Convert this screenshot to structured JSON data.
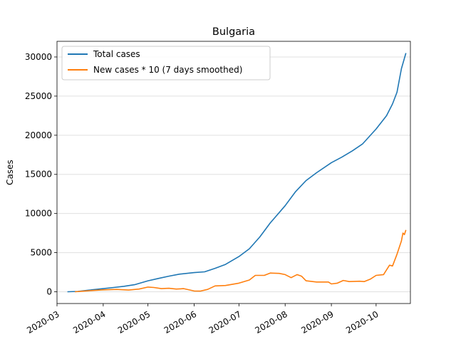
{
  "chart_data": {
    "type": "line",
    "title": "Bulgaria",
    "xlabel": "",
    "ylabel": "Cases",
    "x_axis": "date",
    "xlim": [
      "2020-03-01",
      "2020-10-24"
    ],
    "ylim": [
      -1500,
      32000
    ],
    "x_ticks": [
      "2020-03",
      "2020-04",
      "2020-05",
      "2020-06",
      "2020-07",
      "2020-08",
      "2020-09",
      "2020-10"
    ],
    "y_ticks": [
      0,
      5000,
      10000,
      15000,
      20000,
      25000,
      30000
    ],
    "y_tick_labels": [
      "0",
      "5000",
      "10000",
      "15000",
      "20000",
      "25000",
      "30000"
    ],
    "grid": "horizontal",
    "legend_position": "upper-left",
    "series": [
      {
        "name": "Total cases",
        "color": "#1f77b4",
        "points": [
          [
            "2020-03-08",
            0
          ],
          [
            "2020-03-15",
            50
          ],
          [
            "2020-03-22",
            200
          ],
          [
            "2020-04-01",
            400
          ],
          [
            "2020-04-08",
            550
          ],
          [
            "2020-04-15",
            700
          ],
          [
            "2020-04-22",
            900
          ],
          [
            "2020-05-01",
            1400
          ],
          [
            "2020-05-08",
            1700
          ],
          [
            "2020-05-15",
            2000
          ],
          [
            "2020-05-22",
            2250
          ],
          [
            "2020-06-01",
            2450
          ],
          [
            "2020-06-08",
            2550
          ],
          [
            "2020-06-15",
            3000
          ],
          [
            "2020-06-22",
            3500
          ],
          [
            "2020-07-01",
            4500
          ],
          [
            "2020-07-08",
            5500
          ],
          [
            "2020-07-15",
            7000
          ],
          [
            "2020-07-22",
            8800
          ],
          [
            "2020-08-01",
            11000
          ],
          [
            "2020-08-08",
            12800
          ],
          [
            "2020-08-15",
            14200
          ],
          [
            "2020-08-22",
            15200
          ],
          [
            "2020-09-01",
            16500
          ],
          [
            "2020-09-08",
            17200
          ],
          [
            "2020-09-15",
            18000
          ],
          [
            "2020-09-22",
            18900
          ],
          [
            "2020-10-01",
            20800
          ],
          [
            "2020-10-08",
            22500
          ],
          [
            "2020-10-12",
            24000
          ],
          [
            "2020-10-15",
            25500
          ],
          [
            "2020-10-18",
            28500
          ],
          [
            "2020-10-21",
            30500
          ]
        ]
      },
      {
        "name": "New cases * 10 (7 days smoothed)",
        "color": "#ff7f0e",
        "points": [
          [
            "2020-03-13",
            0
          ],
          [
            "2020-03-20",
            100
          ],
          [
            "2020-04-01",
            250
          ],
          [
            "2020-04-10",
            300
          ],
          [
            "2020-04-18",
            220
          ],
          [
            "2020-04-25",
            350
          ],
          [
            "2020-05-01",
            600
          ],
          [
            "2020-05-05",
            550
          ],
          [
            "2020-05-10",
            400
          ],
          [
            "2020-05-15",
            450
          ],
          [
            "2020-05-20",
            350
          ],
          [
            "2020-05-25",
            400
          ],
          [
            "2020-06-01",
            100
          ],
          [
            "2020-06-05",
            80
          ],
          [
            "2020-06-10",
            300
          ],
          [
            "2020-06-15",
            750
          ],
          [
            "2020-06-22",
            800
          ],
          [
            "2020-07-01",
            1100
          ],
          [
            "2020-07-08",
            1500
          ],
          [
            "2020-07-12",
            2100
          ],
          [
            "2020-07-18",
            2100
          ],
          [
            "2020-07-22",
            2400
          ],
          [
            "2020-07-28",
            2350
          ],
          [
            "2020-08-01",
            2200
          ],
          [
            "2020-08-05",
            1800
          ],
          [
            "2020-08-09",
            2200
          ],
          [
            "2020-08-12",
            2000
          ],
          [
            "2020-08-15",
            1400
          ],
          [
            "2020-08-22",
            1250
          ],
          [
            "2020-08-30",
            1250
          ],
          [
            "2020-09-01",
            1000
          ],
          [
            "2020-09-05",
            1100
          ],
          [
            "2020-09-09",
            1450
          ],
          [
            "2020-09-13",
            1300
          ],
          [
            "2020-09-20",
            1350
          ],
          [
            "2020-09-23",
            1300
          ],
          [
            "2020-09-27",
            1600
          ],
          [
            "2020-10-01",
            2100
          ],
          [
            "2020-10-06",
            2200
          ],
          [
            "2020-10-10",
            3400
          ],
          [
            "2020-10-12",
            3300
          ],
          [
            "2020-10-15",
            4800
          ],
          [
            "2020-10-18",
            6500
          ],
          [
            "2020-10-19",
            7500
          ],
          [
            "2020-10-20",
            7300
          ],
          [
            "2020-10-21",
            7900
          ]
        ]
      }
    ]
  }
}
